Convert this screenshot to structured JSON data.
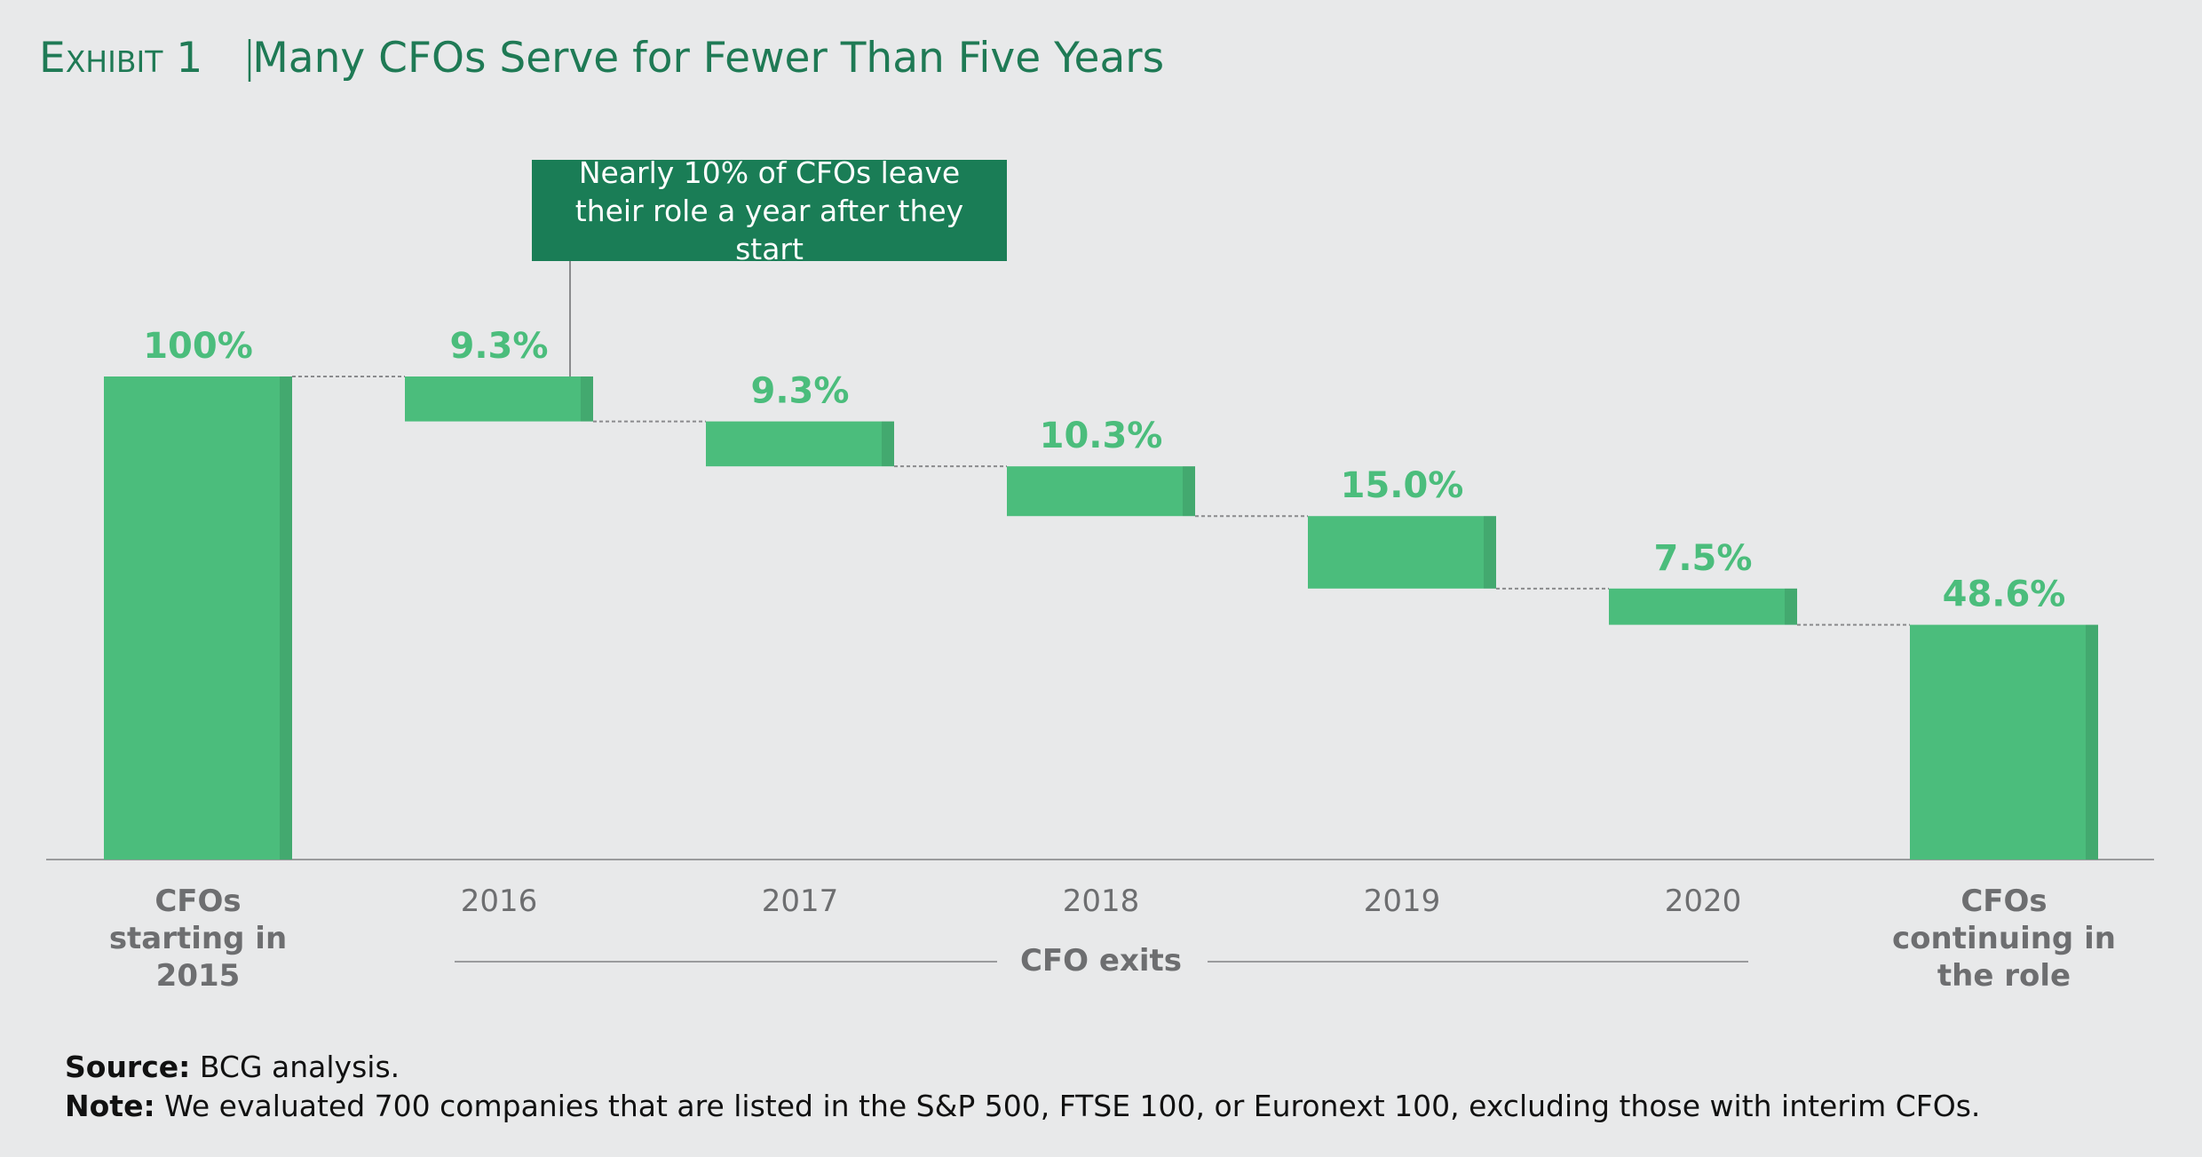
{
  "chart_data": {
    "type": "waterfall",
    "exhibit_label": "Exhibit 1",
    "title": "Many CFOs Serve for Fewer Than Five Years",
    "categories": [
      "CFOs starting in 2015",
      "2016",
      "2017",
      "2018",
      "2019",
      "2020",
      "CFOs continuing in the role"
    ],
    "values": [
      100,
      9.3,
      9.3,
      10.3,
      15.0,
      7.5,
      48.6
    ],
    "value_labels": [
      "100%",
      "9.3%",
      "9.3%",
      "10.3%",
      "15.0%",
      "7.5%",
      "48.6%"
    ],
    "color": "#4bbd7c",
    "ylim": [
      0,
      100
    ],
    "annotation": "Nearly 10% of CFOs leave their role a year after they start",
    "group_label": "CFO exits",
    "source_label": "Source:",
    "source": "BCG analysis.",
    "note_label": "Note:",
    "note": "We evaluated 700 companies that are listed in the S&P 500, FTSE 100, or Euronext 100, excluding those with interim CFOs."
  }
}
